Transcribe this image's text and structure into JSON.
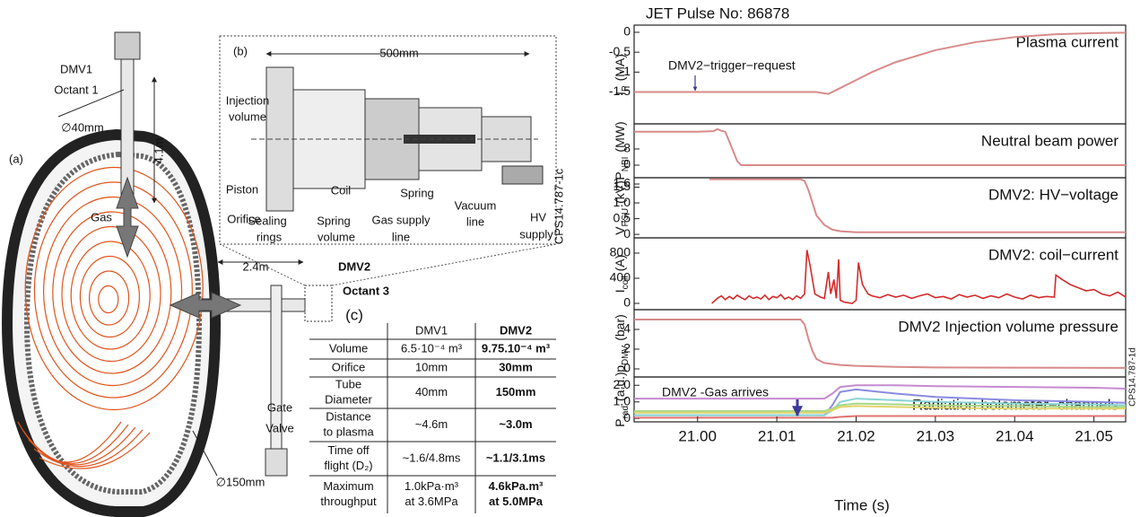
{
  "diagram": {
    "labels": [
      "(a)",
      "DMV1",
      "Octant 1",
      "∅40mm",
      "4.1m",
      "Gas",
      "2.4m",
      "DMV2",
      "Octant 3",
      "Gate",
      "Valve",
      "∅150mm",
      "(b)",
      "500mm",
      "Injection",
      "volume",
      "Piston",
      "Orifice",
      "Coil",
      "Spring",
      "Sealing",
      "rings",
      "Spring",
      "volume",
      "Gas supply",
      "line",
      "Vacuum",
      "line",
      "HV",
      "supply",
      "CPS14.787-1c"
    ]
  },
  "table": {
    "label": "(c)",
    "columns": [
      "DMV1",
      "DMV2"
    ],
    "rows": [
      [
        [
          "Volume"
        ],
        [
          "6.5·10⁻⁴ m³"
        ],
        [
          "9.75.10⁻⁴ m³"
        ]
      ],
      [
        [
          "Orifice"
        ],
        [
          "10mm"
        ],
        [
          "30mm"
        ]
      ],
      [
        [
          "Tube",
          "Diameter"
        ],
        [
          "40mm"
        ],
        [
          "150mm"
        ]
      ],
      [
        [
          "Distance",
          "to plasma"
        ],
        [
          "~4.6m"
        ],
        [
          "~3.0m"
        ]
      ],
      [
        [
          "Time off",
          "flight (D₂)"
        ],
        [
          "~1.6/4.8ms"
        ],
        [
          "~1.1/3.1ms"
        ]
      ],
      [
        [
          "Maximum",
          "throughput"
        ],
        [
          "1.0kPa·m³",
          "at 3.6MPa"
        ],
        [
          "4.6kPa.m³",
          "at 5.0MPa"
        ]
      ]
    ]
  },
  "chart_data": [
    {
      "type": "line",
      "title": "JET Pulse No: 86878",
      "label": "Plasma current",
      "ylabel": {
        "main": "I",
        "sub": "P",
        "unit": "(MA)"
      },
      "xlim": [
        20.992,
        21.054
      ],
      "ylim": [
        -2.3,
        0.18
      ],
      "yticks": [
        0,
        -0.5,
        -1,
        -1.5
      ],
      "annotation": "DMV2−trigger−request",
      "series": [
        {
          "color": "#d88a8a",
          "x": [
            20.992,
            21.0,
            21.01,
            21.015,
            21.0165,
            21.018,
            21.02,
            21.022,
            21.025,
            21.03,
            21.035,
            21.04,
            21.045,
            21.05,
            21.054
          ],
          "values": [
            -1.5,
            -1.5,
            -1.5,
            -1.5,
            -1.55,
            -1.4,
            -1.2,
            -1.0,
            -0.75,
            -0.45,
            -0.25,
            -0.12,
            -0.05,
            -0.02,
            -0.01
          ]
        }
      ]
    },
    {
      "type": "line",
      "label": "Neutral beam power",
      "ylabel": {
        "main": "P",
        "sub": "NBI",
        "unit": "(MW)"
      },
      "xlim": [
        20.992,
        21.054
      ],
      "ylim": [
        -6.2,
        20.4
      ],
      "yticks": [
        0,
        8
      ],
      "series": [
        {
          "color": "#d88a8a",
          "x": [
            20.992,
            21.0,
            21.002,
            21.0025,
            21.003,
            21.0035,
            21.005,
            21.0055,
            21.054
          ],
          "values": [
            16.5,
            16.5,
            16.8,
            17.8,
            17,
            16.5,
            2,
            0,
            0
          ]
        }
      ]
    },
    {
      "type": "line",
      "label": "DMV2: HV−voltage",
      "ylabel": {
        "main": "V",
        "sub": "PSU",
        "unit": "(kV)"
      },
      "xlim": [
        20.992,
        21.054
      ],
      "ylim": [
        -0.11,
        1.8
      ],
      "yticks": [
        0,
        0.5,
        {
          "value": 1,
          "label": "1.0"
        },
        1.5,
        1.6
      ],
      "series": [
        {
          "color": "#d88a8a",
          "x": [
            21.0015,
            21.013,
            21.0135,
            21.014,
            21.0145,
            21.015,
            21.016,
            21.017,
            21.018,
            21.02,
            21.054
          ],
          "values": [
            1.75,
            1.75,
            1.7,
            1.4,
            1.0,
            0.6,
            0.3,
            0.15,
            0.1,
            0.07,
            0.07
          ]
        }
      ]
    },
    {
      "type": "line",
      "label": "DMV2: coil−current",
      "ylabel": {
        "main": "I",
        "sub": "coil",
        "unit": "(A)"
      },
      "xlim": [
        20.992,
        21.054
      ],
      "ylim": [
        -100,
        1043
      ],
      "yticks": [
        0,
        400,
        800
      ],
      "series": [
        {
          "color": "#d42a2a",
          "x": [
            21.0018,
            21.0025,
            21.003,
            21.0035,
            21.004,
            21.0045,
            21.005,
            21.0055,
            21.006,
            21.0065,
            21.007,
            21.0075,
            21.008,
            21.0085,
            21.009,
            21.0095,
            21.01,
            21.0105,
            21.011,
            21.0115,
            21.012,
            21.0125,
            21.013,
            21.0135,
            21.0138,
            21.0142,
            21.0148,
            21.0155,
            21.016,
            21.0165,
            21.0168,
            21.0172,
            21.0175,
            21.0178,
            21.018,
            21.0185,
            21.019,
            21.0195,
            21.02,
            21.0203,
            21.0208,
            21.0215,
            21.022,
            21.023,
            21.024,
            21.025,
            21.026,
            21.027,
            21.028,
            21.029,
            21.03,
            21.031,
            21.032,
            21.033,
            21.034,
            21.035,
            21.036,
            21.037,
            21.038,
            21.039,
            21.04,
            21.041,
            21.042,
            21.043,
            21.044,
            21.045,
            21.0452,
            21.046,
            21.047,
            21.048,
            21.049,
            21.05,
            21.051,
            21.052,
            21.053,
            21.054
          ],
          "values": [
            0,
            80,
            120,
            60,
            110,
            70,
            130,
            90,
            60,
            120,
            80,
            100,
            70,
            130,
            60,
            110,
            90,
            140,
            70,
            100,
            60,
            120,
            80,
            150,
            850,
            600,
            150,
            100,
            80,
            500,
            150,
            380,
            80,
            700,
            50,
            20,
            10,
            0,
            50,
            650,
            300,
            150,
            120,
            90,
            140,
            100,
            130,
            80,
            120,
            150,
            90,
            110,
            70,
            140,
            100,
            130,
            80,
            120,
            90,
            150,
            100,
            70,
            130,
            90,
            110,
            100,
            450,
            380,
            300,
            250,
            200,
            220,
            150,
            120,
            180,
            100
          ]
        }
      ]
    },
    {
      "type": "line",
      "label": "DMV2 Injection volume pressure",
      "ylabel": {
        "main": "p",
        "sub": "DMV",
        "unit": "(bar)"
      },
      "xlim": [
        20.992,
        21.054
      ],
      "ylim": [
        -0.82,
        6
      ],
      "yticks": [
        0,
        2,
        4
      ],
      "series": [
        {
          "color": "#d88a8a",
          "x": [
            20.992,
            21.013,
            21.0135,
            21.014,
            21.0145,
            21.015,
            21.016,
            21.018,
            21.02,
            21.025,
            21.03,
            21.04,
            21.054
          ],
          "values": [
            5,
            5,
            4.5,
            3,
            1.8,
            1,
            0.6,
            0.4,
            0.3,
            0.2,
            0.15,
            0.12,
            0.1
          ]
        }
      ]
    },
    {
      "type": "line",
      "label": "Radiation bolometer−channels",
      "ylabel": {
        "main": "P",
        "sub": "rad",
        "unit": "(a.u.)"
      },
      "xlim": [
        20.992,
        21.054
      ],
      "ylim": [
        -0.2,
        2.5
      ],
      "yticks": [
        0,
        {
          "value": 1,
          "label": "1.0"
        },
        {
          "value": 2,
          "label": "2.0"
        }
      ],
      "xticks": [
        {
          "value": 21,
          "label": "21.00"
        },
        21.01,
        21.02,
        21.03,
        21.04,
        21.05
      ],
      "xlabel": "Time (s)",
      "annotation": "DMV2 -Gas arrives",
      "side_label": "CPS14.787-1d",
      "series": [
        {
          "color": "#c58ad0",
          "x": [
            20.992,
            21.016,
            21.017,
            21.018,
            21.02,
            21.025,
            21.03,
            21.04,
            21.05,
            21.054
          ],
          "values": [
            1.2,
            1.2,
            1.5,
            1.9,
            2.0,
            2.0,
            1.95,
            1.9,
            1.85,
            1.8
          ]
        },
        {
          "color": "#8a8ae0",
          "x": [
            20.992,
            21.016,
            21.017,
            21.018,
            21.02,
            21.025,
            21.03,
            21.04,
            21.05,
            21.054
          ],
          "values": [
            0.2,
            0.2,
            0.8,
            1.6,
            1.75,
            1.5,
            1.3,
            1.1,
            1.0,
            0.95
          ]
        },
        {
          "color": "#8ad4d4",
          "x": [
            20.992,
            21.016,
            21.017,
            21.018,
            21.02,
            21.025,
            21.03,
            21.04,
            21.05,
            21.054
          ],
          "values": [
            0.2,
            0.2,
            0.5,
            1.0,
            1.2,
            1.1,
            1.0,
            0.9,
            0.85,
            0.8
          ]
        },
        {
          "color": "#a8d88a",
          "x": [
            20.992,
            21.016,
            21.017,
            21.018,
            21.02,
            21.025,
            21.03,
            21.04,
            21.05,
            21.054
          ],
          "values": [
            0.45,
            0.45,
            0.6,
            0.8,
            0.9,
            0.85,
            0.8,
            0.75,
            0.7,
            0.7
          ]
        },
        {
          "color": "#e2d46a",
          "x": [
            20.992,
            21.016,
            21.017,
            21.018,
            21.02,
            21.025,
            21.03,
            21.04,
            21.05,
            21.054
          ],
          "values": [
            0.35,
            0.35,
            0.5,
            0.7,
            0.75,
            0.7,
            0.65,
            0.6,
            0.6,
            0.6
          ]
        },
        {
          "color": "#e07070",
          "x": [
            20.992,
            21.016,
            21.017,
            21.018,
            21.02,
            21.025,
            21.03,
            21.04,
            21.05,
            21.054
          ],
          "values": [
            0.05,
            0.05,
            0.05,
            0.1,
            0.15,
            0.15,
            0.15,
            0.15,
            0.15,
            0.15
          ]
        }
      ]
    }
  ]
}
